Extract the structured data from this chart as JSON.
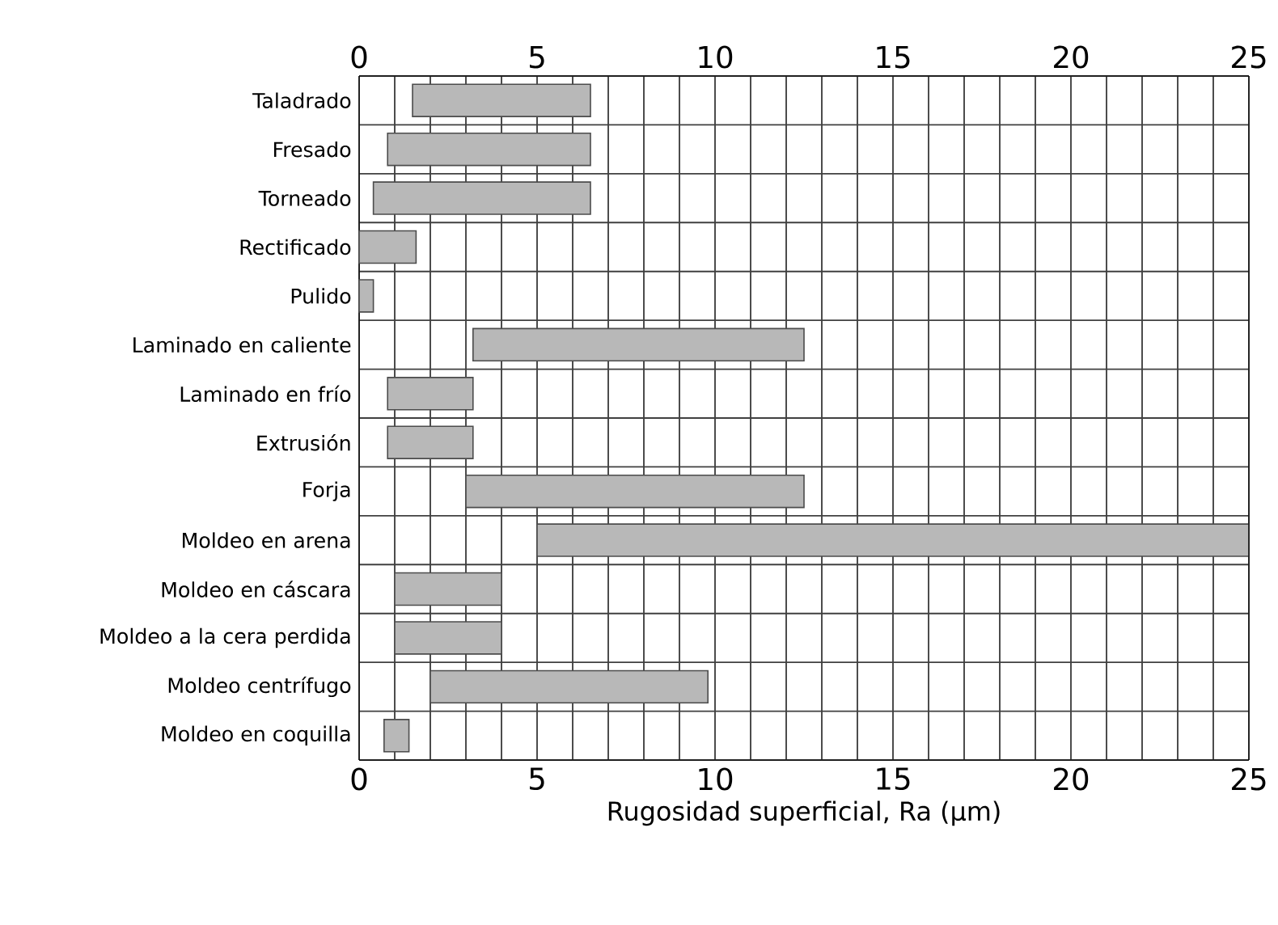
{
  "chart_data": {
    "type": "bar",
    "orientation": "horizontal",
    "xlabel": "Rugosidad superficial, Ra (µm)",
    "categories": [
      "Taladrado",
      "Fresado",
      "Torneado",
      "Rectificado",
      "Pulido",
      "Laminado en caliente",
      "Laminado en frío",
      "Extrusión",
      "Forja",
      "Moldeo en arena",
      "Moldeo en cáscara",
      "Moldeo a la cera perdida",
      "Moldeo centrífugo",
      "Moldeo en coquilla"
    ],
    "base": [
      1.5,
      0.8,
      0.4,
      0,
      0,
      3.2,
      0.8,
      0.8,
      3.0,
      5.0,
      1.0,
      1.0,
      2.0,
      0.7
    ],
    "values": [
      5.0,
      5.7,
      6.1,
      1.6,
      0.4,
      9.3,
      2.4,
      2.4,
      9.5,
      20.0,
      3.0,
      3.0,
      7.8,
      0.7
    ],
    "color": "#b8b8b8",
    "xlim": [
      0,
      25
    ],
    "xticks": [
      0,
      {
        "value": 1,
        "label": null
      },
      {
        "value": 2,
        "label": null
      },
      {
        "value": 3,
        "label": null
      },
      {
        "value": 4,
        "label": null
      },
      5,
      {
        "value": 6,
        "label": null
      },
      {
        "value": 7,
        "label": null
      },
      {
        "value": 8,
        "label": null
      },
      {
        "value": 9,
        "label": null
      },
      10,
      {
        "value": 11,
        "label": null
      },
      {
        "value": 12,
        "label": null
      },
      {
        "value": 13,
        "label": null
      },
      {
        "value": 14,
        "label": null
      },
      15,
      {
        "value": 16,
        "label": null
      },
      {
        "value": 17,
        "label": null
      },
      {
        "value": 18,
        "label": null
      },
      {
        "value": 19,
        "label": null
      },
      20,
      {
        "value": 21,
        "label": null
      },
      {
        "value": 22,
        "label": null
      },
      {
        "value": 23,
        "label": null
      },
      {
        "value": 24,
        "label": null
      },
      25
    ],
    "x2lim": [
      0,
      25
    ],
    "x2ticks": [
      0,
      5,
      10,
      15,
      20,
      25
    ],
    "grid": true
  }
}
